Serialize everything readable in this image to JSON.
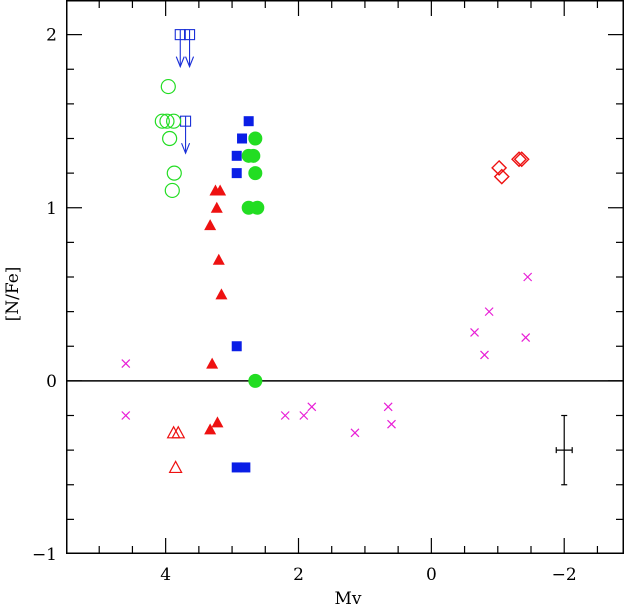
{
  "chart_data": {
    "type": "scatter",
    "xlabel": "Mv",
    "ylabel": "[N/Fe]",
    "xlim": [
      5.5,
      -2.9
    ],
    "ylim": [
      -1.0,
      2.2
    ],
    "x_major_ticks": [
      4,
      2,
      0,
      -2
    ],
    "x_tick_labels": [
      "4",
      "2",
      "0",
      "−2"
    ],
    "y_major_ticks": [
      -1,
      0,
      1,
      2
    ],
    "y_tick_labels": [
      "−1",
      "0",
      "1",
      "2"
    ],
    "zero_line": 0,
    "grid": false,
    "legend": "none",
    "series": [
      {
        "marker": "open-square-upper-limit",
        "color": "#1a2fd8",
        "points": [
          [
            3.78,
            2.0
          ],
          [
            3.64,
            2.0
          ],
          [
            3.7,
            1.5
          ]
        ]
      },
      {
        "marker": "filled-square",
        "color": "#0a1ee6",
        "points": [
          [
            2.75,
            1.5
          ],
          [
            2.85,
            1.4
          ],
          [
            2.93,
            1.3
          ],
          [
            2.93,
            1.2
          ],
          [
            2.93,
            0.2
          ],
          [
            2.93,
            -0.5
          ],
          [
            2.8,
            -0.5
          ]
        ]
      },
      {
        "marker": "open-circle",
        "color": "#22dd22",
        "points": [
          [
            3.96,
            1.7
          ],
          [
            4.05,
            1.5
          ],
          [
            3.98,
            1.5
          ],
          [
            3.88,
            1.5
          ],
          [
            3.94,
            1.4
          ],
          [
            3.87,
            1.2
          ],
          [
            3.9,
            1.1
          ]
        ]
      },
      {
        "marker": "filled-circle",
        "color": "#22dd22",
        "points": [
          [
            2.65,
            1.4
          ],
          [
            2.75,
            1.3
          ],
          [
            2.68,
            1.3
          ],
          [
            2.65,
            1.2
          ],
          [
            2.75,
            1.0
          ],
          [
            2.62,
            1.0
          ],
          [
            2.65,
            0.0
          ]
        ]
      },
      {
        "marker": "filled-triangle",
        "color": "#ee1111",
        "points": [
          [
            3.25,
            1.1
          ],
          [
            3.18,
            1.1
          ],
          [
            3.23,
            1.0
          ],
          [
            3.33,
            0.9
          ],
          [
            3.2,
            0.7
          ],
          [
            3.16,
            0.5
          ],
          [
            3.3,
            0.1
          ],
          [
            3.33,
            -0.28
          ],
          [
            3.22,
            -0.24
          ]
        ]
      },
      {
        "marker": "open-triangle",
        "color": "#ee1111",
        "points": [
          [
            3.88,
            -0.3
          ],
          [
            3.81,
            -0.3
          ],
          [
            3.85,
            -0.5
          ]
        ]
      },
      {
        "marker": "open-diamond",
        "color": "#ee1111",
        "points": [
          [
            -1.02,
            1.23
          ],
          [
            -1.06,
            1.18
          ],
          [
            -1.32,
            1.28
          ],
          [
            -1.36,
            1.28
          ]
        ]
      },
      {
        "marker": "cross",
        "color": "#e81ed6",
        "points": [
          [
            4.6,
            0.1
          ],
          [
            4.6,
            -0.2
          ],
          [
            2.2,
            -0.2
          ],
          [
            1.92,
            -0.2
          ],
          [
            1.8,
            -0.15
          ],
          [
            1.15,
            -0.3
          ],
          [
            0.65,
            -0.15
          ],
          [
            0.6,
            -0.25
          ],
          [
            -0.65,
            0.28
          ],
          [
            -0.8,
            0.15
          ],
          [
            -0.87,
            0.4
          ],
          [
            -1.45,
            0.6
          ],
          [
            -1.42,
            0.25
          ]
        ]
      }
    ],
    "error_bar": {
      "x": -2.0,
      "y": -0.4,
      "xerr": 0.12,
      "yerr": 0.2
    }
  }
}
